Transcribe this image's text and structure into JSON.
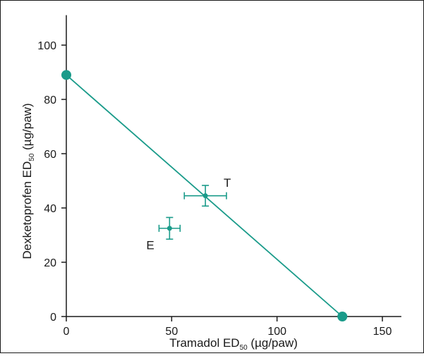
{
  "chart_data": {
    "type": "scatter",
    "xlabel": {
      "main": "Tramadol ED",
      "sub": "50",
      "unit": " (µg/paw)"
    },
    "ylabel": {
      "main": "Dexketoprofen ED",
      "sub": "50",
      "unit": " (µg/paw)"
    },
    "xlim": [
      0,
      160
    ],
    "ylim": [
      0,
      110
    ],
    "x_ticks": [
      0,
      50,
      100,
      150
    ],
    "y_ticks": [
      0,
      20,
      40,
      60,
      80,
      100
    ],
    "grid": false,
    "isobole_line": {
      "from": [
        0,
        89
      ],
      "to": [
        131,
        0
      ]
    },
    "endpoints": [
      {
        "x": 0,
        "y": 89
      },
      {
        "x": 131,
        "y": 0
      }
    ],
    "points": [
      {
        "label": "T",
        "x": 66,
        "y": 44.5,
        "x_err": 10,
        "y_err": 3.8
      },
      {
        "label": "E",
        "x": 49,
        "y": 32.5,
        "x_err": 5,
        "y_err": 4
      }
    ],
    "color": "#1a9b8a"
  }
}
